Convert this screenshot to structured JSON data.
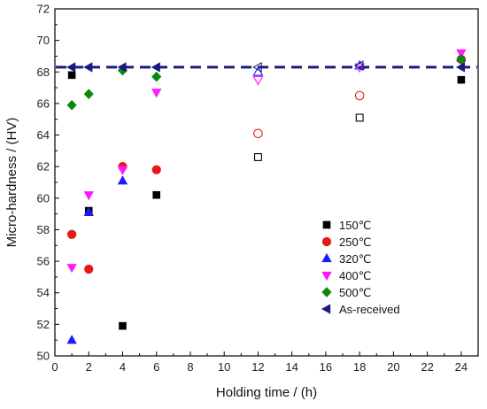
{
  "chart_data": {
    "type": "scatter",
    "xlabel": "Holding time / (h)",
    "ylabel": "Micro-hardness / (HV)",
    "xlim": [
      0,
      25
    ],
    "ylim": [
      50,
      72
    ],
    "xticks": [
      0,
      2,
      4,
      6,
      8,
      10,
      12,
      14,
      16,
      18,
      20,
      22,
      24
    ],
    "yticks": [
      50,
      52,
      54,
      56,
      58,
      60,
      62,
      64,
      66,
      68,
      70,
      72
    ],
    "grid": false,
    "legend_position": "bottom-right",
    "reference_line": {
      "y": 68.3,
      "color": "#1a1a80",
      "style": "dashed"
    },
    "series": [
      {
        "name": "150℃",
        "marker": "square",
        "color": "#000000",
        "points": [
          {
            "x": 1,
            "y": 67.8,
            "filled": true
          },
          {
            "x": 2,
            "y": 59.2,
            "filled": true
          },
          {
            "x": 4,
            "y": 51.9,
            "filled": true
          },
          {
            "x": 6,
            "y": 60.2,
            "filled": true
          },
          {
            "x": 12,
            "y": 62.6,
            "filled": false
          },
          {
            "x": 18,
            "y": 65.1,
            "filled": false
          },
          {
            "x": 24,
            "y": 67.5,
            "filled": true
          }
        ]
      },
      {
        "name": "250℃",
        "marker": "circle",
        "color": "#e61919",
        "points": [
          {
            "x": 1,
            "y": 57.7,
            "filled": true
          },
          {
            "x": 2,
            "y": 55.5,
            "filled": true
          },
          {
            "x": 4,
            "y": 62.0,
            "filled": true
          },
          {
            "x": 6,
            "y": 61.8,
            "filled": true
          },
          {
            "x": 12,
            "y": 64.1,
            "filled": false
          },
          {
            "x": 18,
            "y": 66.5,
            "filled": false
          },
          {
            "x": 24,
            "y": 68.8,
            "filled": true
          }
        ]
      },
      {
        "name": "320℃",
        "marker": "triangle-up",
        "color": "#1a1aff",
        "points": [
          {
            "x": 1,
            "y": 51.0,
            "filled": true
          },
          {
            "x": 2,
            "y": 59.1,
            "filled": true
          },
          {
            "x": 4,
            "y": 61.1,
            "filled": true
          },
          {
            "x": 12,
            "y": 68.0,
            "filled": false
          },
          {
            "x": 18,
            "y": 68.4,
            "filled": false
          },
          {
            "x": 24,
            "y": 68.9,
            "filled": true
          }
        ]
      },
      {
        "name": "400℃",
        "marker": "triangle-down",
        "color": "#ff19ff",
        "points": [
          {
            "x": 1,
            "y": 55.6,
            "filled": true
          },
          {
            "x": 2,
            "y": 60.2,
            "filled": true
          },
          {
            "x": 4,
            "y": 61.8,
            "filled": true
          },
          {
            "x": 6,
            "y": 66.7,
            "filled": true
          },
          {
            "x": 12,
            "y": 67.5,
            "filled": false
          },
          {
            "x": 18,
            "y": 68.3,
            "filled": false
          },
          {
            "x": 24,
            "y": 69.2,
            "filled": true
          }
        ]
      },
      {
        "name": "500℃",
        "marker": "diamond",
        "color": "#0a8a0a",
        "points": [
          {
            "x": 1,
            "y": 65.9,
            "filled": true
          },
          {
            "x": 2,
            "y": 66.6,
            "filled": true
          },
          {
            "x": 4,
            "y": 68.1,
            "filled": true
          },
          {
            "x": 6,
            "y": 67.7,
            "filled": true
          },
          {
            "x": 24,
            "y": 68.8,
            "filled": true
          }
        ]
      },
      {
        "name": "As-received",
        "marker": "triangle-left",
        "color": "#1a1a80",
        "points": [
          {
            "x": 1,
            "y": 68.3,
            "filled": true
          },
          {
            "x": 2,
            "y": 68.3,
            "filled": true
          },
          {
            "x": 4,
            "y": 68.3,
            "filled": true
          },
          {
            "x": 6,
            "y": 68.3,
            "filled": true
          },
          {
            "x": 12,
            "y": 68.3,
            "filled": false
          },
          {
            "x": 18,
            "y": 68.4,
            "filled": false
          },
          {
            "x": 24,
            "y": 68.3,
            "filled": true
          }
        ]
      }
    ]
  }
}
